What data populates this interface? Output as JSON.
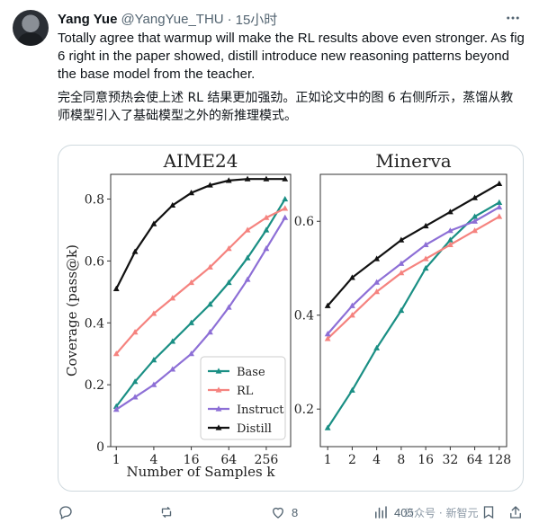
{
  "author": {
    "display_name": "Yang Yue",
    "handle": "@YangYue_THU",
    "separator": "·",
    "time": "15小时"
  },
  "tweet": {
    "text_en": "Totally agree that warmup will make the RL results above even stronger. As fig 6 right in the paper showed, distill introduce new reasoning patterns beyond the base model from the teacher.",
    "text_zh": "完全同意预热会使上述 RL 结果更加强劲。正如论文中的图 6 右侧所示，蒸馏从教师模型引入了基础模型之外的新推理模式。"
  },
  "actions": {
    "reply_count": "",
    "repost_count": "",
    "like_count": "8",
    "views_count": "405"
  },
  "watermark": "公众号 · 新智元",
  "series_colors": {
    "Base": "#1a8f84",
    "RL": "#f5837f",
    "Instruct": "#8d6fd6",
    "Distill": "#111111"
  },
  "chart_data": [
    {
      "type": "line",
      "title": "AIME24",
      "xlabel": "Number of Samples k",
      "ylabel": "Coverage (pass@k)",
      "x_scale": "log2",
      "x": [
        1,
        2,
        4,
        8,
        16,
        32,
        64,
        128,
        256,
        512
      ],
      "x_tick_labels": [
        "1",
        "4",
        "16",
        "64",
        "256"
      ],
      "x_tick_values": [
        1,
        4,
        16,
        64,
        256
      ],
      "ylim": [
        0,
        0.88
      ],
      "y_ticks": [
        "0",
        "0.2",
        "0.4",
        "0.6",
        "0.8"
      ],
      "legend": "bottom-right",
      "series": [
        {
          "name": "Base",
          "values": [
            0.13,
            0.21,
            0.28,
            0.34,
            0.4,
            0.46,
            0.53,
            0.61,
            0.7,
            0.8
          ]
        },
        {
          "name": "RL",
          "values": [
            0.3,
            0.37,
            0.43,
            0.48,
            0.53,
            0.58,
            0.64,
            0.7,
            0.74,
            0.77
          ]
        },
        {
          "name": "Instruct",
          "values": [
            0.12,
            0.16,
            0.2,
            0.25,
            0.3,
            0.37,
            0.45,
            0.54,
            0.64,
            0.74
          ]
        },
        {
          "name": "Distill",
          "values": [
            0.51,
            0.63,
            0.72,
            0.78,
            0.82,
            0.845,
            0.86,
            0.865,
            0.865,
            0.865
          ]
        }
      ]
    },
    {
      "type": "line",
      "title": "Minerva",
      "xlabel": "",
      "ylabel": "",
      "x_scale": "log2",
      "x": [
        1,
        2,
        4,
        8,
        16,
        32,
        64,
        128
      ],
      "x_tick_labels": [
        "1",
        "2",
        "4",
        "8",
        "16",
        "32",
        "64",
        "128"
      ],
      "x_tick_values": [
        1,
        2,
        4,
        8,
        16,
        32,
        64,
        128
      ],
      "ylim": [
        0.12,
        0.7
      ],
      "y_ticks": [
        "0.2",
        "0.4",
        "0.6"
      ],
      "legend": "",
      "series": [
        {
          "name": "Base",
          "values": [
            0.16,
            0.24,
            0.33,
            0.41,
            0.5,
            0.56,
            0.61,
            0.64
          ]
        },
        {
          "name": "RL",
          "values": [
            0.35,
            0.4,
            0.45,
            0.49,
            0.52,
            0.55,
            0.58,
            0.61
          ]
        },
        {
          "name": "Instruct",
          "values": [
            0.36,
            0.42,
            0.47,
            0.51,
            0.55,
            0.58,
            0.6,
            0.63
          ]
        },
        {
          "name": "Distill",
          "values": [
            0.42,
            0.48,
            0.52,
            0.56,
            0.59,
            0.62,
            0.65,
            0.68
          ]
        }
      ]
    }
  ]
}
